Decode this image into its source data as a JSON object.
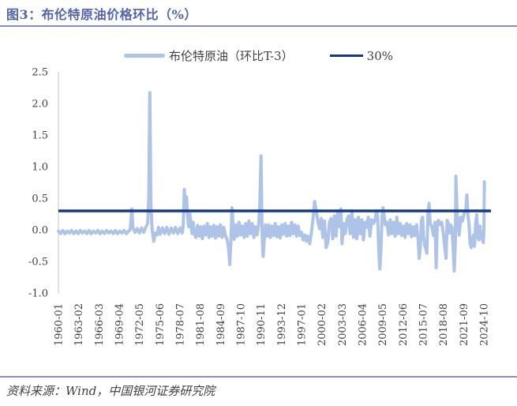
{
  "header": {
    "title": "图3：布伦特原油价格环比（%）"
  },
  "footer": {
    "source": "资料来源：Wind，中国银河证券研究院"
  },
  "colors": {
    "title": "#5063AE",
    "divider": "#8491BD",
    "axis": "#D9D9D9",
    "tick_text": "#404040",
    "brent_series": "#AEC3E8",
    "threshold_line": "#12398F"
  },
  "chart_data": {
    "type": "line",
    "title": "图3：布伦特原油价格环比（%）",
    "xlabel": "",
    "ylabel": "",
    "grid": false,
    "legend_position": "top",
    "ylim": [
      -1.0,
      2.5
    ],
    "xlim_months": [
      0,
      790
    ],
    "x_unit": "months since 1960-01",
    "y_ticks": [
      "2.5",
      "2.0",
      "1.5",
      "1.0",
      "0.5",
      "0.0",
      "-0.5",
      "-1.0"
    ],
    "x_ticks": [
      {
        "m": 0,
        "label": "1960-01"
      },
      {
        "m": 37,
        "label": "1963-02"
      },
      {
        "m": 74,
        "label": "1966-03"
      },
      {
        "m": 111,
        "label": "1969-04"
      },
      {
        "m": 148,
        "label": "1972-05"
      },
      {
        "m": 185,
        "label": "1975-06"
      },
      {
        "m": 222,
        "label": "1978-07"
      },
      {
        "m": 259,
        "label": "1981-08"
      },
      {
        "m": 296,
        "label": "1984-09"
      },
      {
        "m": 333,
        "label": "1987-10"
      },
      {
        "m": 370,
        "label": "1990-11"
      },
      {
        "m": 407,
        "label": "1993-12"
      },
      {
        "m": 444,
        "label": "1997-01"
      },
      {
        "m": 481,
        "label": "2000-02"
      },
      {
        "m": 518,
        "label": "2003-03"
      },
      {
        "m": 555,
        "label": "2006-04"
      },
      {
        "m": 592,
        "label": "2009-05"
      },
      {
        "m": 629,
        "label": "2012-06"
      },
      {
        "m": 666,
        "label": "2015-07"
      },
      {
        "m": 703,
        "label": "2018-08"
      },
      {
        "m": 740,
        "label": "2021-09"
      },
      {
        "m": 777,
        "label": "2024-10"
      }
    ],
    "series": [
      {
        "name": "布伦特原油（环比T-3）",
        "type": "line",
        "color": "#AEC3E8",
        "points": [
          [
            0,
            -0.02
          ],
          [
            4,
            -0.06
          ],
          [
            8,
            -0.01
          ],
          [
            12,
            -0.06
          ],
          [
            16,
            -0.02
          ],
          [
            20,
            -0.05
          ],
          [
            24,
            -0.01
          ],
          [
            28,
            -0.06
          ],
          [
            32,
            -0.02
          ],
          [
            36,
            -0.06
          ],
          [
            40,
            -0.01
          ],
          [
            44,
            -0.05
          ],
          [
            48,
            -0.02
          ],
          [
            52,
            -0.06
          ],
          [
            56,
            -0.01
          ],
          [
            60,
            -0.06
          ],
          [
            64,
            -0.02
          ],
          [
            68,
            -0.05
          ],
          [
            72,
            -0.01
          ],
          [
            76,
            -0.06
          ],
          [
            80,
            -0.02
          ],
          [
            84,
            -0.06
          ],
          [
            88,
            -0.01
          ],
          [
            92,
            -0.05
          ],
          [
            96,
            -0.02
          ],
          [
            100,
            -0.06
          ],
          [
            104,
            -0.01
          ],
          [
            108,
            -0.06
          ],
          [
            112,
            -0.02
          ],
          [
            116,
            -0.05
          ],
          [
            120,
            -0.01
          ],
          [
            124,
            -0.06
          ],
          [
            128,
            -0.02
          ],
          [
            131,
            0.0
          ],
          [
            134,
            0.33
          ],
          [
            136,
            0.04
          ],
          [
            140,
            -0.04
          ],
          [
            144,
            0.02
          ],
          [
            148,
            -0.05
          ],
          [
            152,
            0.03
          ],
          [
            156,
            -0.04
          ],
          [
            160,
            0.05
          ],
          [
            163,
            0.1
          ],
          [
            165,
            0.5
          ],
          [
            167,
            2.17
          ],
          [
            169,
            0.4
          ],
          [
            171,
            0.02
          ],
          [
            174,
            -0.18
          ],
          [
            177,
            -0.05
          ],
          [
            180,
            -0.08
          ],
          [
            183,
            0.04
          ],
          [
            186,
            -0.07
          ],
          [
            190,
            0.03
          ],
          [
            194,
            -0.06
          ],
          [
            198,
            0.04
          ],
          [
            202,
            -0.07
          ],
          [
            206,
            0.03
          ],
          [
            210,
            -0.05
          ],
          [
            214,
            0.04
          ],
          [
            218,
            -0.06
          ],
          [
            222,
            0.03
          ],
          [
            226,
            -0.05
          ],
          [
            228,
            0.08
          ],
          [
            230,
            0.64
          ],
          [
            232,
            0.3
          ],
          [
            234,
            0.52
          ],
          [
            236,
            0.2
          ],
          [
            238,
            0.05
          ],
          [
            240,
            0.25
          ],
          [
            242,
            0.08
          ],
          [
            244,
            -0.06
          ],
          [
            246,
            0.12
          ],
          [
            248,
            -0.04
          ],
          [
            251,
            -0.12
          ],
          [
            254,
            0.07
          ],
          [
            257,
            -0.1
          ],
          [
            260,
            0.05
          ],
          [
            263,
            -0.14
          ],
          [
            266,
            0.06
          ],
          [
            269,
            -0.08
          ],
          [
            272,
            0.1
          ],
          [
            275,
            -0.12
          ],
          [
            278,
            0.05
          ],
          [
            281,
            -0.1
          ],
          [
            284,
            0.07
          ],
          [
            287,
            -0.13
          ],
          [
            290,
            0.05
          ],
          [
            293,
            -0.1
          ],
          [
            296,
            0.08
          ],
          [
            299,
            -0.12
          ],
          [
            302,
            0.04
          ],
          [
            305,
            -0.09
          ],
          [
            308,
            -0.15
          ],
          [
            311,
            -0.3
          ],
          [
            313,
            -0.55
          ],
          [
            315,
            -0.2
          ],
          [
            317,
            0.35
          ],
          [
            319,
            0.08
          ],
          [
            321,
            -0.15
          ],
          [
            324,
            0.08
          ],
          [
            327,
            -0.1
          ],
          [
            330,
            0.12
          ],
          [
            333,
            -0.08
          ],
          [
            336,
            0.06
          ],
          [
            339,
            -0.12
          ],
          [
            342,
            0.1
          ],
          [
            345,
            -0.1
          ],
          [
            348,
            0.14
          ],
          [
            351,
            -0.06
          ],
          [
            354,
            0.1
          ],
          [
            357,
            -0.12
          ],
          [
            360,
            0.05
          ],
          [
            363,
            -0.08
          ],
          [
            366,
            0.12
          ],
          [
            368,
            0.45
          ],
          [
            370,
            1.17
          ],
          [
            372,
            -0.05
          ],
          [
            374,
            -0.42
          ],
          [
            376,
            -0.15
          ],
          [
            378,
            0.08
          ],
          [
            381,
            -0.1
          ],
          [
            384,
            0.08
          ],
          [
            387,
            -0.12
          ],
          [
            390,
            0.06
          ],
          [
            393,
            -0.09
          ],
          [
            396,
            0.1
          ],
          [
            399,
            -0.11
          ],
          [
            402,
            0.05
          ],
          [
            405,
            -0.13
          ],
          [
            408,
            0.08
          ],
          [
            411,
            -0.07
          ],
          [
            414,
            0.1
          ],
          [
            417,
            -0.1
          ],
          [
            420,
            0.06
          ],
          [
            423,
            -0.09
          ],
          [
            426,
            0.12
          ],
          [
            429,
            -0.06
          ],
          [
            432,
            0.08
          ],
          [
            435,
            -0.1
          ],
          [
            438,
            0.06
          ],
          [
            441,
            -0.09
          ],
          [
            444,
            -0.04
          ],
          [
            447,
            -0.16
          ],
          [
            450,
            -0.08
          ],
          [
            453,
            -0.18
          ],
          [
            456,
            -0.1
          ],
          [
            459,
            -0.22
          ],
          [
            462,
            -0.05
          ],
          [
            465,
            0.18
          ],
          [
            468,
            0.45
          ],
          [
            471,
            0.3
          ],
          [
            474,
            0.12
          ],
          [
            477,
            0.02
          ],
          [
            480,
            0.18
          ],
          [
            483,
            -0.12
          ],
          [
            486,
            0.14
          ],
          [
            489,
            -0.28
          ],
          [
            492,
            -0.2
          ],
          [
            495,
            0.12
          ],
          [
            498,
            0.18
          ],
          [
            501,
            -0.14
          ],
          [
            504,
            0.22
          ],
          [
            507,
            -0.1
          ],
          [
            510,
            0.28
          ],
          [
            513,
            0.05
          ],
          [
            516,
            0.33
          ],
          [
            518,
            -0.22
          ],
          [
            521,
            0.1
          ],
          [
            524,
            -0.06
          ],
          [
            527,
            0.16
          ],
          [
            530,
            0.22
          ],
          [
            533,
            -0.06
          ],
          [
            536,
            0.3
          ],
          [
            539,
            -0.12
          ],
          [
            542,
            0.16
          ],
          [
            545,
            -0.14
          ],
          [
            548,
            0.2
          ],
          [
            551,
            -0.06
          ],
          [
            554,
            0.16
          ],
          [
            557,
            -0.16
          ],
          [
            560,
            0.12
          ],
          [
            563,
            0.04
          ],
          [
            566,
            0.2
          ],
          [
            569,
            -0.1
          ],
          [
            572,
            0.16
          ],
          [
            575,
            0.1
          ],
          [
            578,
            0.14
          ],
          [
            581,
            0.3
          ],
          [
            583,
            0.22
          ],
          [
            585,
            -0.3
          ],
          [
            587,
            -0.62
          ],
          [
            589,
            -0.3
          ],
          [
            591,
            0.2
          ],
          [
            593,
            0.35
          ],
          [
            595,
            0.22
          ],
          [
            597,
            0.08
          ],
          [
            600,
            0.12
          ],
          [
            603,
            -0.08
          ],
          [
            606,
            0.16
          ],
          [
            609,
            -0.06
          ],
          [
            612,
            0.12
          ],
          [
            615,
            -0.1
          ],
          [
            618,
            0.2
          ],
          [
            621,
            -0.06
          ],
          [
            624,
            0.1
          ],
          [
            627,
            -0.09
          ],
          [
            630,
            0.06
          ],
          [
            633,
            -0.12
          ],
          [
            636,
            0.1
          ],
          [
            639,
            -0.06
          ],
          [
            642,
            0.08
          ],
          [
            645,
            -0.11
          ],
          [
            648,
            0.05
          ],
          [
            651,
            -0.09
          ],
          [
            654,
            0.08
          ],
          [
            657,
            -0.15
          ],
          [
            659,
            -0.45
          ],
          [
            661,
            -0.28
          ],
          [
            663,
            0.15
          ],
          [
            665,
            0.2
          ],
          [
            667,
            -0.12
          ],
          [
            669,
            -0.25
          ],
          [
            671,
            -0.3
          ],
          [
            673,
            -0.37
          ],
          [
            675,
            0.25
          ],
          [
            677,
            0.42
          ],
          [
            679,
            0.1
          ],
          [
            682,
            0.05
          ],
          [
            685,
            -0.09
          ],
          [
            688,
            0.12
          ],
          [
            690,
            -0.6
          ],
          [
            692,
            0.1
          ],
          [
            694,
            0.15
          ],
          [
            697,
            0.08
          ],
          [
            700,
            0.12
          ],
          [
            703,
            -0.06
          ],
          [
            706,
            -0.3
          ],
          [
            708,
            -0.45
          ],
          [
            710,
            0.15
          ],
          [
            712,
            0.1
          ],
          [
            714,
            -0.05
          ],
          [
            716,
            0.08
          ],
          [
            719,
            0.04
          ],
          [
            721,
            -0.3
          ],
          [
            723,
            -0.65
          ],
          [
            725,
            -0.2
          ],
          [
            726,
            0.85
          ],
          [
            728,
            0.3
          ],
          [
            730,
            0.05
          ],
          [
            732,
            -0.08
          ],
          [
            735,
            0.2
          ],
          [
            738,
            0.14
          ],
          [
            741,
            0.26
          ],
          [
            744,
            0.3
          ],
          [
            746,
            0.55
          ],
          [
            748,
            0.22
          ],
          [
            750,
            0.08
          ],
          [
            752,
            -0.22
          ],
          [
            754,
            -0.28
          ],
          [
            756,
            -0.14
          ],
          [
            758,
            -0.08
          ],
          [
            760,
            -0.26
          ],
          [
            762,
            0.1
          ],
          [
            764,
            0.24
          ],
          [
            766,
            -0.12
          ],
          [
            768,
            -0.16
          ],
          [
            770,
            0.06
          ],
          [
            772,
            -0.12
          ],
          [
            774,
            -0.14
          ],
          [
            776,
            -0.2
          ],
          [
            777,
            -0.05
          ],
          [
            778,
            0.76
          ]
        ]
      },
      {
        "name": "30%",
        "type": "hline",
        "color": "#12398F",
        "value": 0.3
      }
    ]
  }
}
